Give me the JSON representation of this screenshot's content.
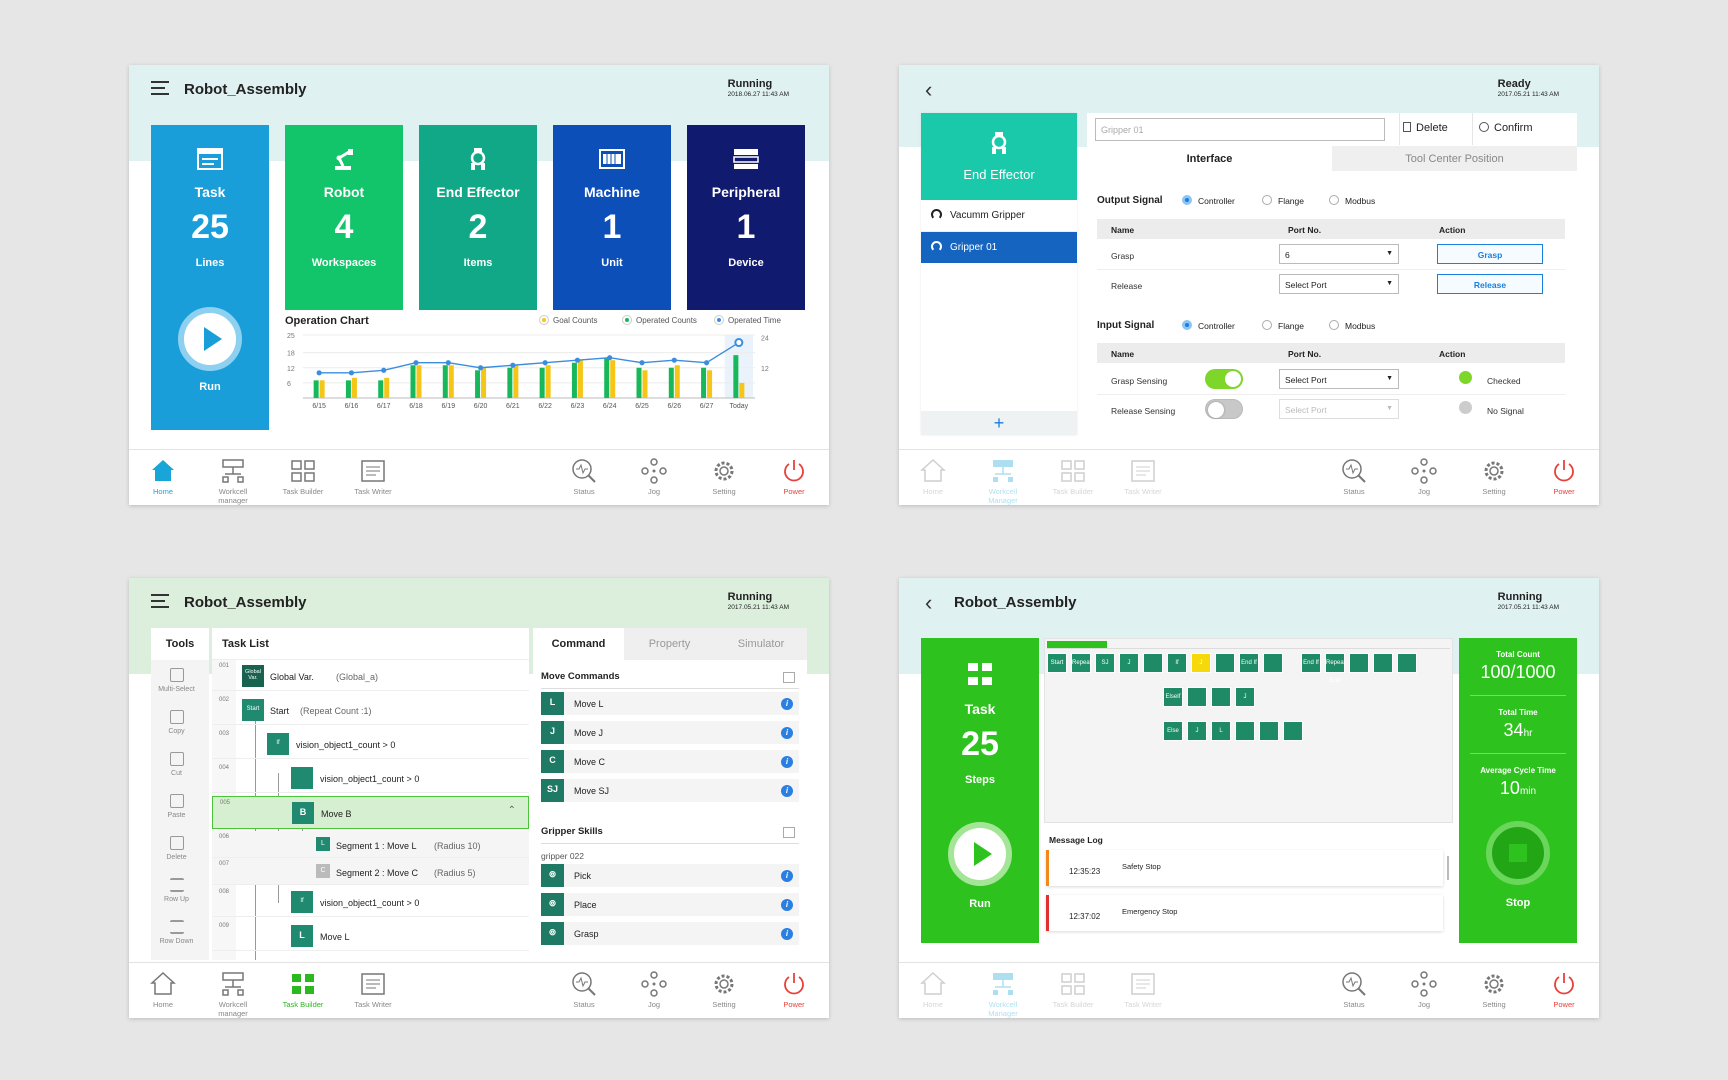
{
  "nav": {
    "home": "Home",
    "workcell": "Workcell manager",
    "workcell_alt": "Workcell Manager",
    "task_builder": "Task Builder",
    "task_writer": "Task Writer",
    "status": "Status",
    "jog": "Jog",
    "setting": "Setting",
    "power": "Power"
  },
  "panel1": {
    "title": "Robot_Assembly",
    "status": "Running",
    "timestamp": "2018.06.27 11:43 AM",
    "cards": [
      {
        "label": "Task",
        "value": "25",
        "unit": "Lines",
        "color": "#1a9ed9"
      },
      {
        "label": "Robot",
        "value": "4",
        "unit": "Workspaces",
        "color": "#12c46a"
      },
      {
        "label": "End Effector",
        "value": "2",
        "unit": "Items",
        "color": "#10a886"
      },
      {
        "label": "Machine",
        "value": "1",
        "unit": "Unit",
        "color": "#0d4fb8"
      },
      {
        "label": "Peripheral",
        "value": "1",
        "unit": "Device",
        "color": "#101a6e"
      }
    ],
    "run_label": "Run",
    "chart_title": "Operation Chart",
    "legend": [
      "Goal Counts",
      "Operated Counts",
      "Operated Time"
    ]
  },
  "chart_data": {
    "type": "bar",
    "title": "Operation Chart",
    "categories": [
      "6/15",
      "6/16",
      "6/17",
      "6/18",
      "6/19",
      "6/20",
      "6/21",
      "6/22",
      "6/23",
      "6/24",
      "6/25",
      "6/26",
      "6/27",
      "Today"
    ],
    "series": [
      {
        "name": "Goal Counts",
        "type": "bar",
        "color": "#f5c518",
        "values": [
          7,
          8,
          8,
          13,
          13,
          12,
          13,
          13,
          15,
          15,
          11,
          13,
          11,
          6
        ]
      },
      {
        "name": "Operated Counts",
        "type": "bar",
        "color": "#16b85a",
        "values": [
          7,
          7,
          7,
          13,
          13,
          11,
          12,
          12,
          14,
          16,
          12,
          12,
          12,
          17
        ]
      },
      {
        "name": "Operated Time",
        "type": "line",
        "color": "#3b8de0",
        "values": [
          10,
          10,
          11,
          14,
          14,
          12,
          13,
          14,
          15,
          16,
          14,
          15,
          14,
          22
        ]
      }
    ],
    "y_left_ticks": [
      6,
      12,
      18,
      25
    ],
    "y_right_ticks": [
      12,
      24
    ],
    "ylim": [
      0,
      25
    ]
  },
  "panel2": {
    "status": "Ready",
    "timestamp": "2017.05.21 11:43 AM",
    "effector_title": "End Effector",
    "list": [
      "Vacumm Gripper",
      "Gripper 01"
    ],
    "add": "+",
    "name_placeholder": "Gripper 01",
    "delete": "Delete",
    "confirm": "Confirm",
    "tabs": [
      "Interface",
      "Tool Center Position"
    ],
    "output_signal": "Output Signal",
    "input_signal": "Input Signal",
    "radios": [
      "Controller",
      "Flange",
      "Modbus"
    ],
    "cols": [
      "Name",
      "Port No.",
      "Action"
    ],
    "out_rows": [
      {
        "name": "Grasp",
        "port": "6",
        "action": "Grasp"
      },
      {
        "name": "Release",
        "port": "Select Port",
        "action": "Release"
      }
    ],
    "in_rows": [
      {
        "name": "Grasp Sensing",
        "port": "Select Port",
        "status": "Checked"
      },
      {
        "name": "Release Sensing",
        "port": "Select Port",
        "status": "No Signal"
      }
    ]
  },
  "panel3": {
    "title": "Robot_Assembly",
    "status": "Running",
    "timestamp": "2017.05.21 11:43 AM",
    "tools_title": "Tools",
    "tools": [
      "Multi-Select",
      "Copy",
      "Cut",
      "Paste",
      "Delete",
      "Row Up",
      "Row Down"
    ],
    "tasklist_title": "Task List",
    "rows": [
      {
        "num": "001",
        "node": "Global Var.",
        "text": "Global Var.",
        "extra": "(Global_a)"
      },
      {
        "num": "002",
        "node": "Start",
        "text": "Start",
        "extra": "(Repeat Count :1)"
      },
      {
        "num": "003",
        "node": "If",
        "text": "vision_object1_count > 0",
        "extra": ""
      },
      {
        "num": "004",
        "node": "",
        "text": "vision_object1_count > 0",
        "extra": ""
      },
      {
        "num": "005",
        "node": "B",
        "text": "Move B",
        "extra": ""
      },
      {
        "num": "006",
        "node": "L",
        "text": "Segment 1 : Move L",
        "extra": "(Radius 10)"
      },
      {
        "num": "007",
        "node": "C",
        "text": "Segment 2 : Move C",
        "extra": "(Radius 5)"
      },
      {
        "num": "008",
        "node": "If",
        "text": "vision_object1_count > 0",
        "extra": ""
      },
      {
        "num": "009",
        "node": "L",
        "text": "Move L",
        "extra": ""
      }
    ],
    "tabs": [
      "Command",
      "Property",
      "Simulator"
    ],
    "move_title": "Move Commands",
    "moves": [
      {
        "icon": "L",
        "label": "Move L"
      },
      {
        "icon": "J",
        "label": "Move J"
      },
      {
        "icon": "C",
        "label": "Move C"
      },
      {
        "icon": "SJ",
        "label": "Move SJ"
      }
    ],
    "gripper_title": "Gripper Skills",
    "gripper_sub": "gripper 022",
    "skills": [
      "Pick",
      "Place",
      "Grasp"
    ]
  },
  "panel4": {
    "title": "Robot_Assembly",
    "status": "Running",
    "timestamp": "2017.05.21 11:43 AM",
    "task_label": "Task",
    "task_value": "25",
    "task_unit": "Steps",
    "run_label": "Run",
    "total_count_label": "Total Count",
    "total_count_value": "100/1000",
    "total_time_label": "Total Time",
    "total_time_value": "34",
    "total_time_unit": "hr",
    "avg_label": "Average Cycle Time",
    "avg_value": "10",
    "avg_unit": "min",
    "stop_label": "Stop",
    "blocks_row1": [
      "Start",
      "Repeat",
      "SJ",
      "J",
      "",
      "If",
      "J",
      "",
      "End If",
      "",
      "End If",
      "Repeat End",
      "",
      "",
      ""
    ],
    "blocks_row2": [
      "ElseIf",
      "",
      "",
      "J"
    ],
    "blocks_row3": [
      "Else",
      "J",
      "L",
      "",
      "",
      ""
    ],
    "log_title": "Message Log",
    "logs": [
      {
        "time": "12:35:23",
        "msg": "Safety Stop",
        "color": "#f08a1c"
      },
      {
        "time": "12:37:02",
        "msg": "Emergency Stop",
        "color": "#e03030"
      }
    ]
  }
}
